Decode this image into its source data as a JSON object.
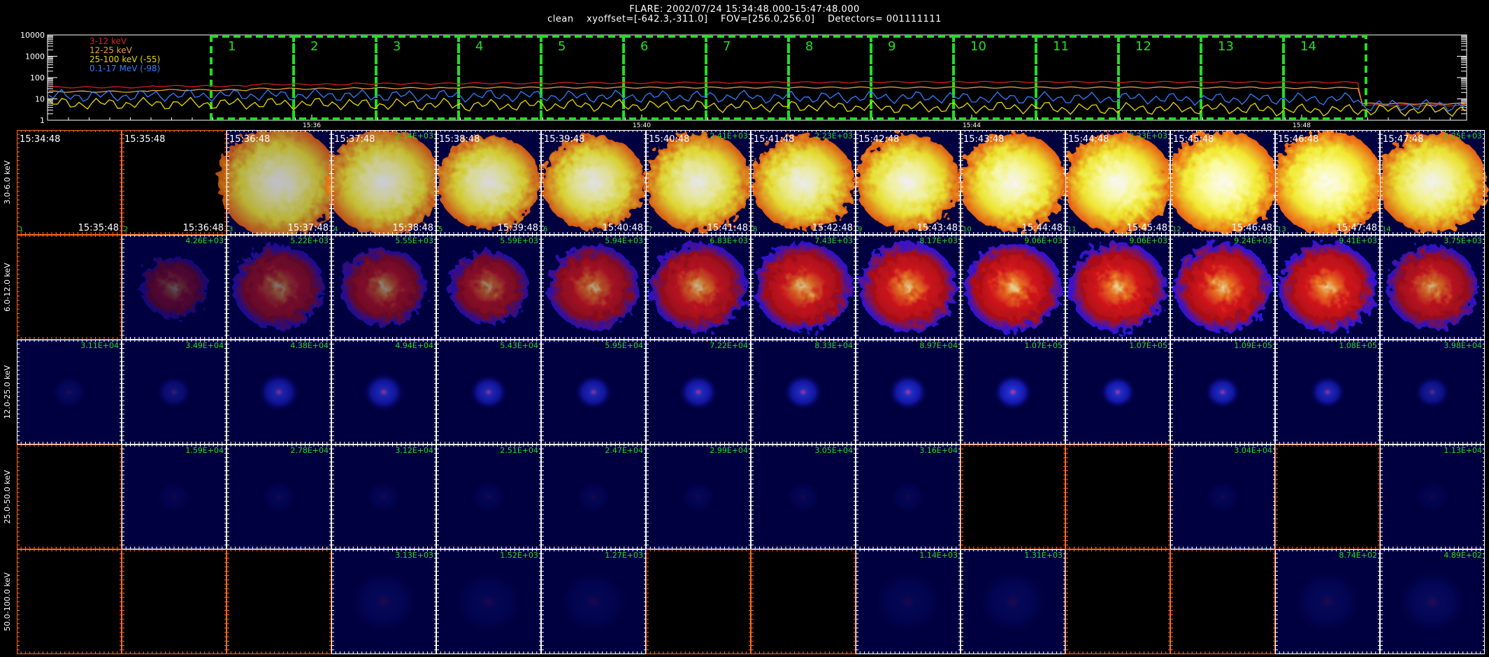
{
  "header": {
    "line1": "FLARE: 2002/07/24 15:34:48.000-15:47:48.000",
    "line2": "clean    xyoffset=[-642.3,-311.0]    FOV=[256.0,256.0]    Detectors= 001111111"
  },
  "chart_data": [
    {
      "type": "line",
      "y_scale": "log",
      "ylim": [
        1,
        10000
      ],
      "y_ticks": [
        "10000",
        "1000",
        "100",
        "10",
        "1"
      ],
      "x_ticks": [
        "15:36",
        "15:40",
        "15:44",
        "15:48"
      ],
      "series": [
        {
          "name": "3-12 keV",
          "color": "#d22020",
          "levels": [
            35,
            40,
            48,
            52,
            54,
            56,
            58,
            60,
            62,
            62,
            62,
            62,
            60,
            5
          ]
        },
        {
          "name": "12-25 keV",
          "color": "#e8a040",
          "levels": [
            22,
            26,
            30,
            32,
            34,
            34,
            34,
            34,
            34,
            34,
            34,
            34,
            33,
            6
          ]
        },
        {
          "name": "25-100 keV (-55)",
          "color": "#e6d800",
          "levels": [
            6,
            6,
            6,
            5.5,
            5,
            5,
            4.5,
            4.5,
            4,
            4,
            3.5,
            3.5,
            3,
            3
          ]
        },
        {
          "name": "0.1-17 MeV (-98)",
          "color": "#2f7fff",
          "levels": [
            14,
            15,
            15,
            14,
            14,
            13,
            13,
            12,
            12,
            11,
            11,
            10,
            10,
            5
          ]
        }
      ],
      "intervals": [
        "1",
        "2",
        "3",
        "4",
        "5",
        "6",
        "7",
        "8",
        "9",
        "10",
        "11",
        "12",
        "13",
        "14"
      ]
    },
    {
      "type": "heatmap",
      "rows": [
        {
          "label": "3.0-6.0 keV",
          "cmap": "yellow",
          "intensity": [
            0,
            0,
            0.75,
            0.8,
            0.85,
            0.88,
            0.9,
            0.92,
            0.94,
            0.96,
            0.97,
            0.98,
            0.98,
            0.95
          ],
          "spread": [
            0,
            0,
            1.0,
            0.95,
            0.85,
            0.85,
            0.88,
            0.85,
            0.86,
            0.88,
            0.9,
            0.92,
            0.92,
            0.9
          ],
          "max": [
            "",
            "",
            "",
            "2.54E+03",
            "",
            "",
            "2.41E+03",
            "2.23E+03",
            "",
            "",
            "2.23E+03",
            "",
            "",
            "2.25E+03"
          ],
          "start": [
            "15:34:48",
            "15:35:48",
            "15:36:48",
            "15:37:48",
            "15:38:48",
            "15:39:48",
            "15:40:48",
            "15:41:48",
            "15:42:48",
            "15:43:48",
            "15:44:48",
            "15:45:48",
            "15:46:48",
            "15:47:48"
          ],
          "end": [
            "15:35:48",
            "15:36:48",
            "15:37:48",
            "15:38:48",
            "15:39:48",
            "15:40:48",
            "15:41:48",
            "15:42:48",
            "15:43:48",
            "15:44:48",
            "15:45:48",
            "15:46:48",
            "15:47:48",
            ""
          ]
        },
        {
          "label": "6.0-12.0 keV",
          "cmap": "red",
          "intensity": [
            0,
            0.35,
            0.5,
            0.55,
            0.6,
            0.7,
            0.78,
            0.84,
            0.88,
            0.9,
            0.9,
            0.9,
            0.9,
            0.8
          ],
          "spread": [
            0,
            0.55,
            0.75,
            0.7,
            0.65,
            0.75,
            0.8,
            0.8,
            0.8,
            0.8,
            0.8,
            0.8,
            0.8,
            0.75
          ],
          "max": [
            "",
            "4.26E+03",
            "5.22E+03",
            "5.55E+03",
            "5.59E+03",
            "5.94E+03",
            "6.83E+03",
            "7.43E+03",
            "8.17E+03",
            "9.06E+03",
            "9.06E+03",
            "9.24E+03",
            "9.41E+03",
            "3.75E+03"
          ],
          "start": [],
          "end": []
        },
        {
          "label": "12.0-25.0 keV",
          "cmap": "blue",
          "intensity": [
            0.15,
            0.3,
            0.55,
            0.6,
            0.6,
            0.6,
            0.65,
            0.65,
            0.7,
            0.75,
            0.7,
            0.65,
            0.62,
            0.45
          ],
          "spread": [
            0.3,
            0.3,
            0.35,
            0.35,
            0.32,
            0.32,
            0.33,
            0.33,
            0.33,
            0.33,
            0.3,
            0.3,
            0.3,
            0.3
          ],
          "max": [
            "3.11E+04",
            "3.49E+04",
            "4.38E+04",
            "4.94E+04",
            "5.43E+04",
            "5.95E+04",
            "7.22E+04",
            "8.33E+04",
            "8.97E+04",
            "1.07E+05",
            "1.07E+05",
            "1.09E+05",
            "1.08E+05",
            "3.98E+04"
          ],
          "start": [],
          "end": []
        },
        {
          "label": "25.0-50.0 keV",
          "cmap": "blue",
          "intensity": [
            0,
            0.08,
            0.1,
            0.1,
            0.1,
            0.1,
            0.1,
            0.1,
            0.1,
            0,
            0,
            0.1,
            0,
            0.08
          ],
          "spread": [
            0,
            0.3,
            0.3,
            0.3,
            0.3,
            0.3,
            0.3,
            0.3,
            0.3,
            0,
            0,
            0.3,
            0,
            0.3
          ],
          "max": [
            "",
            "1.59E+04",
            "2.78E+04",
            "3.12E+04",
            "2.51E+04",
            "2.47E+04",
            "2.99E+04",
            "3.05E+04",
            "3.16E+04",
            "",
            "",
            "3.04E+04",
            "",
            "1.13E+04"
          ],
          "start": [],
          "end": []
        },
        {
          "label": "50.0-100.0 keV",
          "cmap": "blue",
          "intensity": [
            0,
            0,
            0,
            0.12,
            0.1,
            0.1,
            0,
            0,
            0.1,
            0.12,
            0,
            0,
            0.12,
            0.14
          ],
          "spread": [
            0,
            0,
            0,
            0.6,
            0.6,
            0.6,
            0,
            0,
            0.6,
            0.6,
            0,
            0,
            0.6,
            0.6
          ],
          "max": [
            "",
            "",
            "",
            "3.13E+03",
            "1.52E+03",
            "1.27E+03",
            "",
            "",
            "1.14E+03",
            "1.31E+03",
            "",
            "",
            "8.74E+02",
            "4.89E+02"
          ],
          "start": [],
          "end": []
        }
      ],
      "colors": {
        "empty_frame": "#ff6a1a",
        "frame": "#ffffff",
        "max_label": "#22dd22",
        "label": "#ffffff"
      }
    }
  ],
  "colors": {
    "interval_box": "#22dd22",
    "axis": "#ffffff"
  }
}
